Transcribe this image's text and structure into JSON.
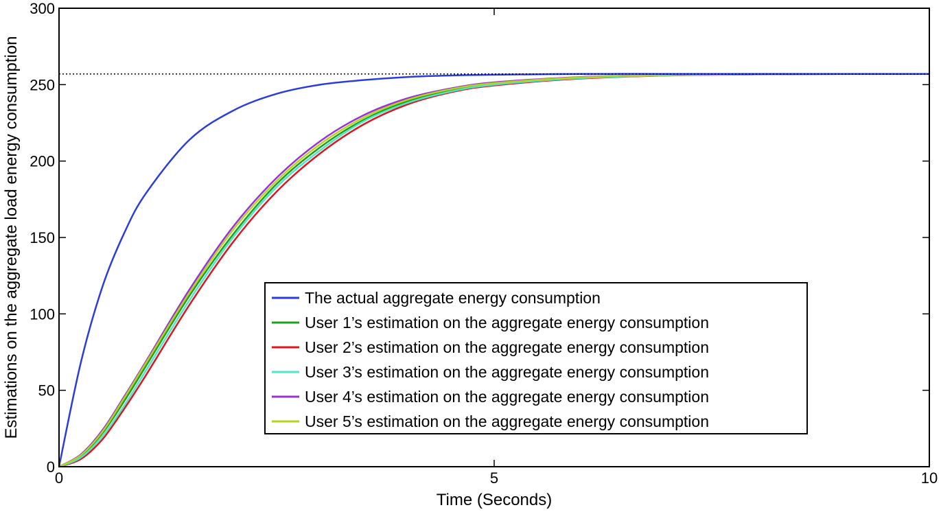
{
  "chart_data": {
    "type": "line",
    "title": "",
    "xlabel": "Time (Seconds)",
    "ylabel": "Estimations on the aggregate load energy consumption",
    "xlim": [
      0,
      10
    ],
    "ylim": [
      0,
      300
    ],
    "xticks": [
      0,
      5,
      10
    ],
    "yticks": [
      0,
      50,
      100,
      150,
      200,
      250,
      300
    ],
    "grid": false,
    "legend_position": "center-right",
    "reference_line": {
      "y": 257,
      "style": "dotted",
      "color": "#000000"
    },
    "x": [
      0,
      0.25,
      0.5,
      0.75,
      1,
      1.5,
      2,
      2.5,
      3,
      3.5,
      4,
      4.5,
      5,
      6,
      7,
      8,
      9,
      10
    ],
    "series": [
      {
        "name": "The actual aggregate energy consumption",
        "color": "#2a3cdc",
        "values": [
          0,
          68,
          118,
          153,
          179,
          214,
          233,
          244,
          250,
          253,
          255,
          256,
          256.5,
          257,
          257,
          257,
          257,
          257
        ]
      },
      {
        "name": "User 1’s estimation on the aggregate energy consumption",
        "color": "#1ea01e",
        "values": [
          0,
          7,
          22,
          43,
          66,
          112,
          152,
          185,
          209,
          227,
          239,
          246,
          250,
          254.5,
          256.2,
          256.8,
          257,
          257
        ]
      },
      {
        "name": "User 2’s estimation on the aggregate energy consumption",
        "color": "#e0141e",
        "values": [
          0,
          5,
          18,
          38,
          60,
          106,
          147,
          180,
          205,
          224,
          237,
          245,
          249.5,
          254,
          256,
          256.7,
          257,
          257
        ]
      },
      {
        "name": "User 3’s estimation on the aggregate energy consumption",
        "color": "#50e6c8",
        "values": [
          0,
          6,
          20,
          40,
          63,
          109,
          150,
          183,
          207,
          226,
          238,
          245.5,
          250,
          254.3,
          256.1,
          256.8,
          257,
          257
        ]
      },
      {
        "name": "User 4’s estimation on the aggregate energy consumption",
        "color": "#9a30d8",
        "values": [
          0,
          8,
          24,
          46,
          69,
          116,
          157,
          189,
          213,
          230,
          241,
          247.5,
          251.5,
          255,
          256.4,
          256.9,
          257,
          257
        ]
      },
      {
        "name": "User 5’s estimation on the aggregate energy consumption",
        "color": "#b4d21e",
        "values": [
          0,
          7.5,
          23,
          45,
          68,
          114,
          155,
          187,
          211,
          228.5,
          240,
          247,
          251,
          254.8,
          256.3,
          256.9,
          257,
          257
        ]
      }
    ]
  }
}
